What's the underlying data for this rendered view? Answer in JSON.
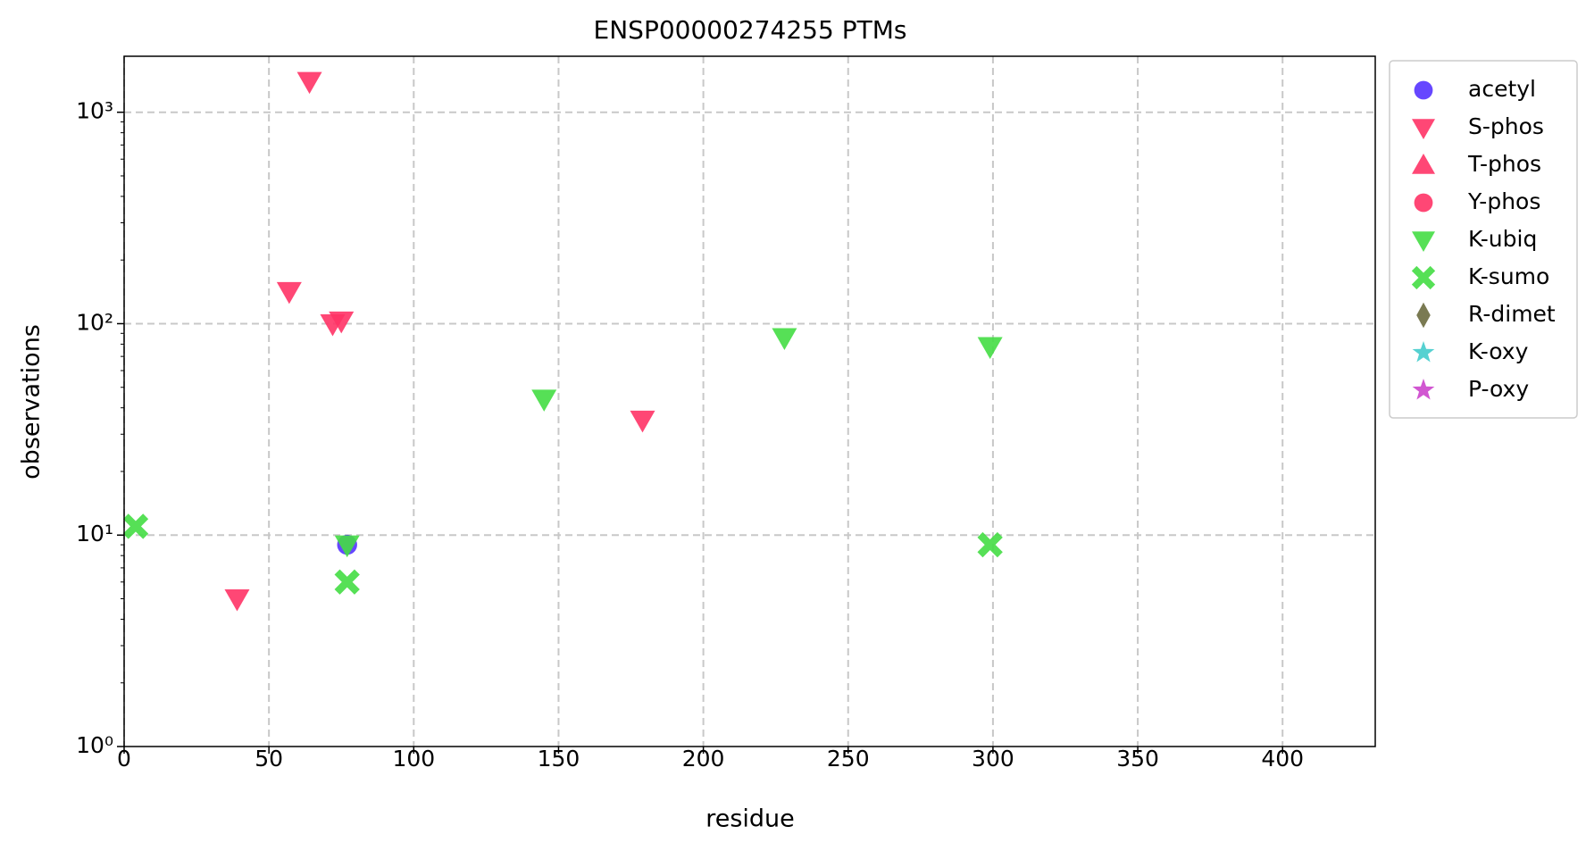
{
  "chart_data": {
    "type": "scatter",
    "title": "ENSP00000274255 PTMs",
    "xlabel": "residue",
    "ylabel": "observations",
    "xlim": [
      0,
      432
    ],
    "xticks": [
      0,
      50,
      100,
      150,
      200,
      250,
      300,
      350,
      400
    ],
    "ylim": [
      1,
      1840
    ],
    "log_y": true,
    "grid": true,
    "legend": "outside right",
    "yticks": [
      {
        "value": 1,
        "label": "10⁰"
      },
      {
        "value": 10,
        "label": "10¹"
      },
      {
        "value": 100,
        "label": "10²"
      },
      {
        "value": 1000,
        "label": "10³"
      }
    ],
    "yticks_minor": [
      2,
      3,
      4,
      5,
      6,
      7,
      8,
      9,
      20,
      30,
      40,
      50,
      60,
      70,
      80,
      90,
      200,
      300,
      400,
      500,
      600,
      700,
      800,
      900
    ],
    "series": [
      {
        "name": "acetyl",
        "color": "#5533ff",
        "marker": "circle",
        "x": [
          77
        ],
        "values": [
          9
        ]
      },
      {
        "name": "S-phos",
        "color": "#ff3366",
        "marker": "triangle_down",
        "x": [
          64,
          57,
          72,
          75,
          179,
          39
        ],
        "values": [
          1400,
          142,
          100,
          103,
          35,
          5
        ]
      },
      {
        "name": "T-phos",
        "color": "#ff3366",
        "marker": "triangle_up",
        "x": [],
        "values": []
      },
      {
        "name": "Y-phos",
        "color": "#ff3366",
        "marker": "circle",
        "x": [],
        "values": []
      },
      {
        "name": "K-ubiq",
        "color": "#44dd44",
        "marker": "triangle_down",
        "x": [
          145,
          228,
          299,
          77
        ],
        "values": [
          44,
          86,
          78,
          9
        ]
      },
      {
        "name": "K-sumo",
        "color": "#44dd44",
        "marker": "x",
        "x": [
          4,
          77,
          299
        ],
        "values": [
          11,
          6,
          9
        ]
      },
      {
        "name": "R-dimet",
        "color": "#6b6b3f",
        "marker": "diamond",
        "x": [],
        "values": []
      },
      {
        "name": "K-oxy",
        "color": "#44cccc",
        "marker": "star",
        "x": [],
        "values": []
      },
      {
        "name": "P-oxy",
        "color": "#cc44cc",
        "marker": "star",
        "x": [],
        "values": []
      }
    ]
  }
}
